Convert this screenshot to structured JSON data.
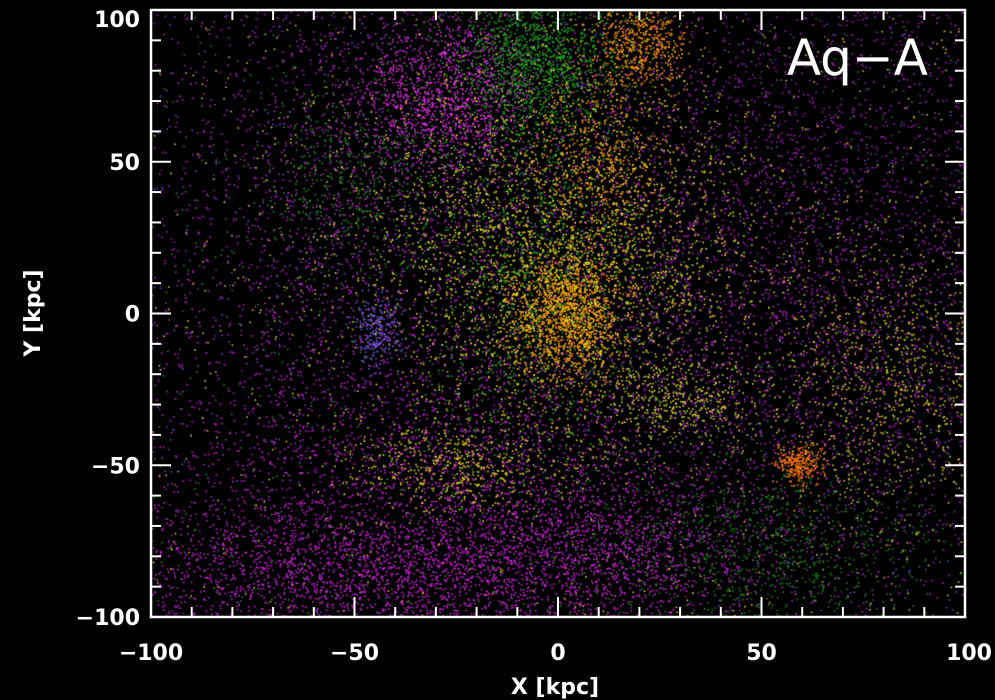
{
  "chart_data": {
    "type": "scatter",
    "annotation": "Aq−A",
    "xlabel": "X [kpc]",
    "ylabel": "Y [kpc]",
    "xlim": [
      -100,
      100
    ],
    "ylim": [
      -100,
      100
    ],
    "grid": false,
    "background": "#000000",
    "axis_color": "#ffffff",
    "x_ticks": [
      {
        "value": -100,
        "label": "−100"
      },
      {
        "value": -50,
        "label": "−50"
      },
      {
        "value": 0,
        "label": "0"
      },
      {
        "value": 50,
        "label": "50"
      },
      {
        "value": 100,
        "label": "100"
      }
    ],
    "y_ticks": [
      {
        "value": -100,
        "label": "−100"
      },
      {
        "value": -50,
        "label": "−50"
      },
      {
        "value": 0,
        "label": "0"
      },
      {
        "value": 50,
        "label": "50"
      },
      {
        "value": 100,
        "label": "100"
      }
    ],
    "minor_tick_step": 10,
    "particle_groups": [
      {
        "color": "#d020d8",
        "center": [
          -40,
          -85
        ],
        "spread": [
          40,
          12
        ],
        "count": 2600
      },
      {
        "color": "#c818d0",
        "center": [
          -30,
          -55
        ],
        "spread": [
          35,
          18
        ],
        "count": 1400
      },
      {
        "color": "#c020d0",
        "center": [
          -45,
          10
        ],
        "spread": [
          30,
          45
        ],
        "count": 1700
      },
      {
        "color": "#a018b8",
        "center": [
          55,
          40
        ],
        "spread": [
          40,
          45
        ],
        "count": 2400
      },
      {
        "color": "#b020c0",
        "center": [
          60,
          -20
        ],
        "spread": [
          35,
          30
        ],
        "count": 1200
      },
      {
        "color": "#e030e0",
        "center": [
          -28,
          72
        ],
        "spread": [
          12,
          14
        ],
        "count": 1300
      },
      {
        "color": "#d028d8",
        "center": [
          15,
          -75
        ],
        "spread": [
          15,
          12
        ],
        "count": 600
      },
      {
        "color": "#1fa01f",
        "center": [
          -5,
          85
        ],
        "spread": [
          10,
          15
        ],
        "count": 1500
      },
      {
        "color": "#28a828",
        "center": [
          -5,
          10
        ],
        "spread": [
          15,
          30
        ],
        "count": 1200
      },
      {
        "color": "#1f7f1f",
        "center": [
          50,
          -75
        ],
        "spread": [
          20,
          15
        ],
        "count": 900
      },
      {
        "color": "#2a8a2a",
        "center": [
          -50,
          45
        ],
        "spread": [
          12,
          15
        ],
        "count": 500
      },
      {
        "color": "#ffa500",
        "center": [
          2,
          0
        ],
        "spread": [
          7,
          11
        ],
        "count": 1400
      },
      {
        "color": "#ff9500",
        "center": [
          20,
          90
        ],
        "spread": [
          6,
          9
        ],
        "count": 600
      },
      {
        "color": "#ff9a10",
        "center": [
          10,
          50
        ],
        "spread": [
          8,
          14
        ],
        "count": 500
      },
      {
        "color": "#ff7a00",
        "center": [
          59,
          -49
        ],
        "spread": [
          3,
          3
        ],
        "count": 250
      },
      {
        "color": "#f0e020",
        "center": [
          0,
          20
        ],
        "spread": [
          25,
          30
        ],
        "count": 2600
      },
      {
        "color": "#e8d820",
        "center": [
          -25,
          -50
        ],
        "spread": [
          15,
          8
        ],
        "count": 500
      },
      {
        "color": "#ddd020",
        "center": [
          80,
          -20
        ],
        "spread": [
          15,
          25
        ],
        "count": 900
      },
      {
        "color": "#d8d830",
        "center": [
          30,
          -30
        ],
        "spread": [
          10,
          8
        ],
        "count": 400
      },
      {
        "color": "#6a5ad0",
        "center": [
          -45,
          -5
        ],
        "spread": [
          3,
          7
        ],
        "count": 250
      }
    ],
    "background_noise": {
      "count": 5200,
      "colors": [
        "#b020c0",
        "#c020d0",
        "#9018b0",
        "#208a20",
        "#6a4ac0",
        "#d8c820"
      ]
    }
  }
}
